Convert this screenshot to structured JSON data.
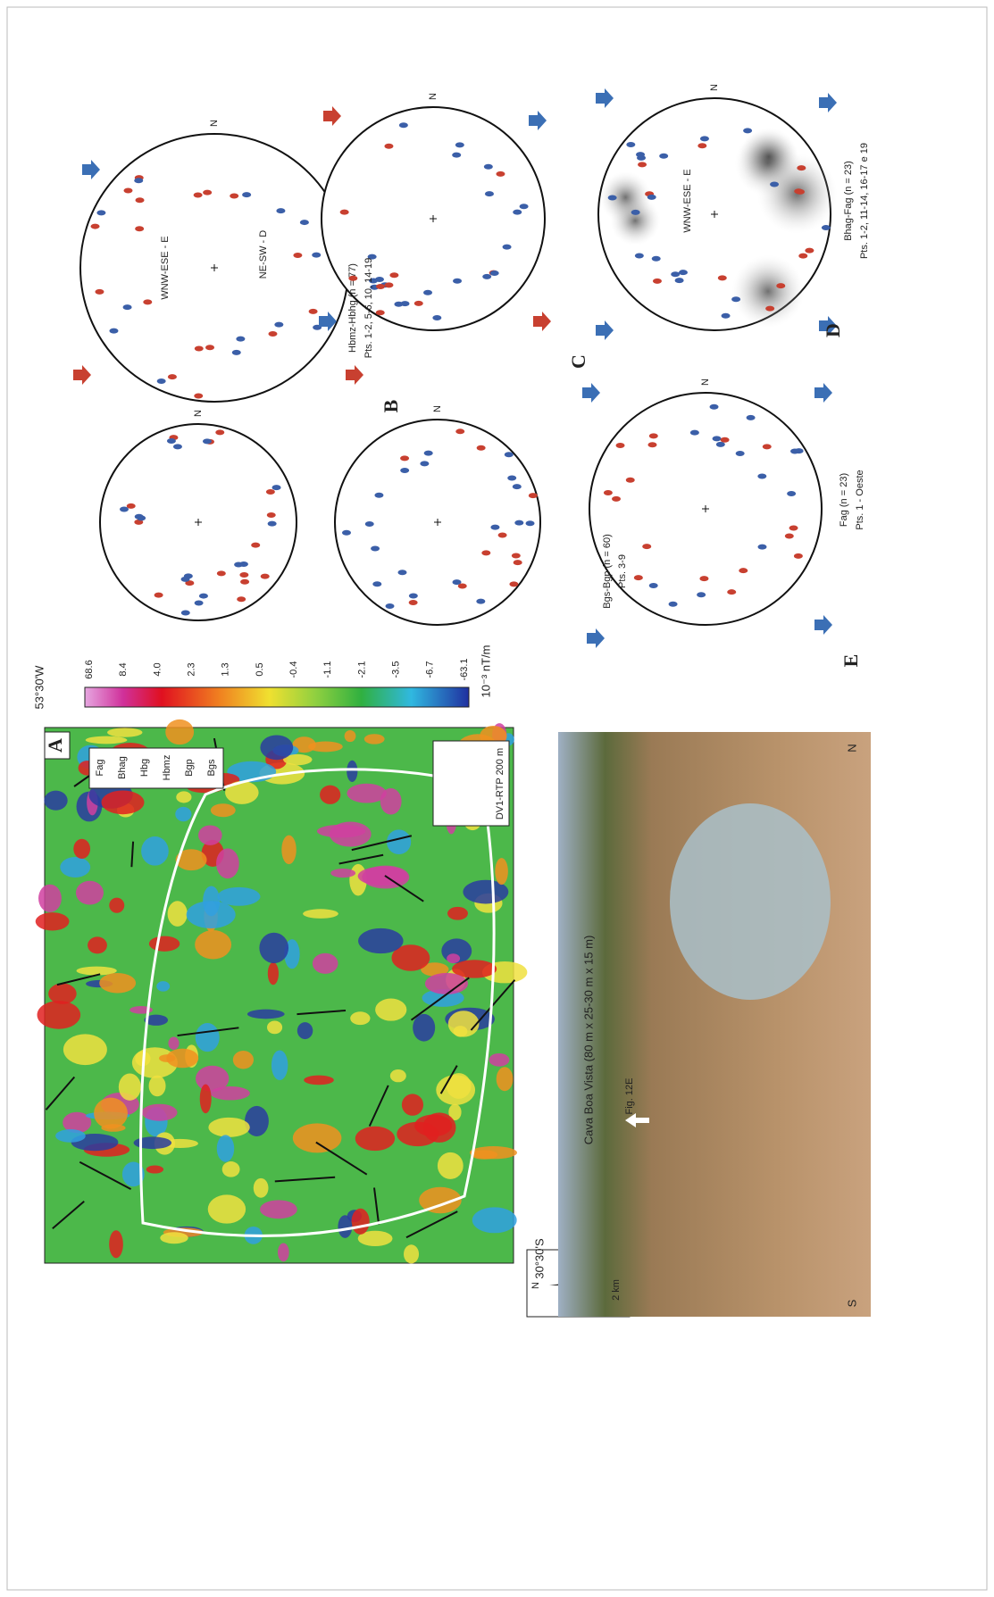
{
  "map": {
    "panel": "A",
    "longitude": "53°30'W",
    "latitude": "30°30'S",
    "north": "N",
    "scale": "2 km",
    "legend": [
      "Fag",
      "Bhag",
      "Hbg",
      "Hbmz",
      "Bgp",
      "Bgs"
    ],
    "inset_label": "DV1-RTP 200 m",
    "colorbar": {
      "labels": [
        "68.6",
        "8.4",
        "4.0",
        "2.3",
        "1.3",
        "0.5",
        "-0.4",
        "-1.1",
        "-2.1",
        "-3.5",
        "-6.7",
        "-63.1"
      ],
      "unit": "10⁻³ nT/m"
    }
  },
  "photo": {
    "title": "Cava Boa Vista (80 m x 25-30 m x 15 m)",
    "pointer": "Fig. 12E",
    "left": "S",
    "right": "N"
  },
  "stereonets": [
    {
      "panel": "B",
      "north": "N",
      "annotations": [
        "WNW-ESE - E",
        "NE-SW - D"
      ],
      "caption": "Hbmz-Hbhg (n = 77)",
      "points": "Pts. 1-2, 5-6, 10, 14-19"
    },
    {
      "panel": "C",
      "north": "N",
      "caption": "Bgs-Bgp (n = 60)",
      "points": "Pts. 3-9"
    },
    {
      "panel": "D",
      "north": "N",
      "annotations": [
        "WNW-ESE - E"
      ],
      "caption": "Bhag-Fag (n = 23)",
      "points": "Pts. 1-2, 11-14, 16-17 e 19"
    },
    {
      "panel": "E",
      "north": "N",
      "caption": "Fag (n = 23)",
      "points": "Pts. 1 - Oeste"
    }
  ]
}
